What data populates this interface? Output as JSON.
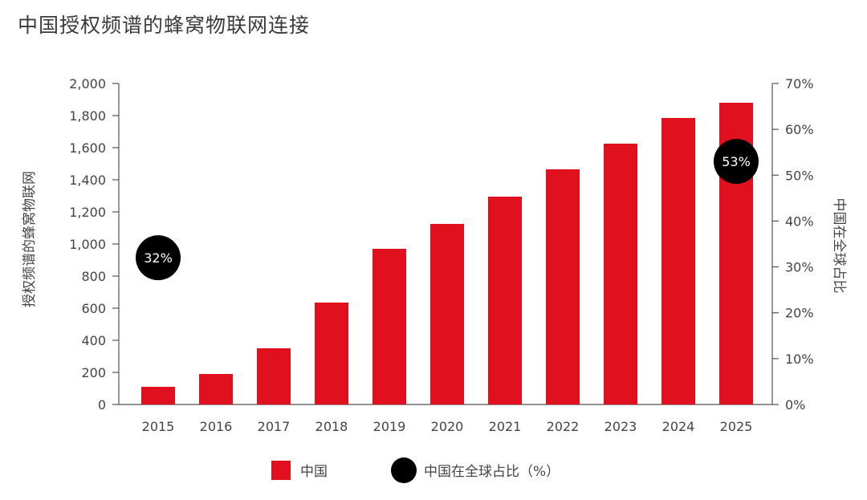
{
  "header": {
    "title": "中国授权频谱的蜂窝物联网连接"
  },
  "colors": {
    "bar": "#e0101e",
    "bubble": "#000000",
    "axis": "#555555",
    "text": "#444444"
  },
  "chart_data": {
    "type": "bar",
    "title": "中国授权频谱的蜂窝物联网连接",
    "ylabel": "授权频谱的蜂窝物联网",
    "y2label": "中国在全球占比",
    "categories": [
      "2015",
      "2016",
      "2017",
      "2018",
      "2019",
      "2020",
      "2021",
      "2022",
      "2023",
      "2024",
      "2025"
    ],
    "series": [
      {
        "name": "中国",
        "values": [
          110,
          190,
          350,
          635,
          970,
          1125,
          1295,
          1465,
          1625,
          1785,
          1880
        ]
      }
    ],
    "ylim": [
      0,
      2000
    ],
    "y_ticks": [
      "0",
      "200",
      "400",
      "600",
      "800",
      "1,000",
      "1,200",
      "1,400",
      "1,600",
      "1,800",
      "2,000"
    ],
    "y2lim": [
      0,
      70
    ],
    "y2_ticks": [
      "0%",
      "10%",
      "20%",
      "30%",
      "40%",
      "50%",
      "60%",
      "70%"
    ],
    "share_points": [
      {
        "category": "2015",
        "value": 32,
        "label": "32%"
      },
      {
        "category": "2025",
        "value": 53,
        "label": "53%"
      }
    ],
    "legend": [
      {
        "label": "中国",
        "marker": "bar"
      },
      {
        "label": "中国在全球占比（%）",
        "marker": "circle"
      }
    ],
    "grid": false,
    "legend_position": "bottom"
  }
}
